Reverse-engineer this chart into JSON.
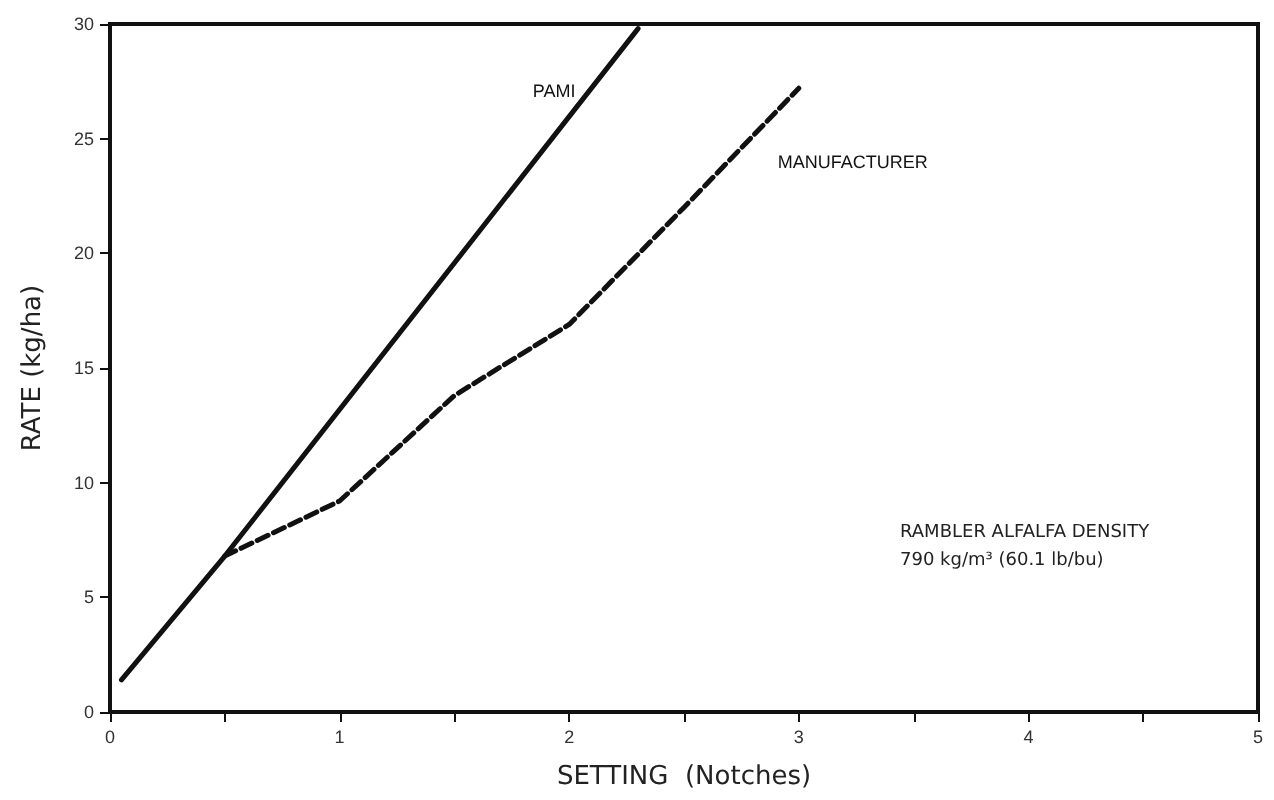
{
  "chart_data": {
    "type": "line",
    "xlabel": "SETTING  (Notches)",
    "ylabel": "RATE (kg/ha)",
    "xlim": [
      0,
      5
    ],
    "ylim": [
      0,
      30
    ],
    "xticks": [
      0,
      {
        "value": 0.5,
        "label": null
      },
      1,
      {
        "value": 1.5,
        "label": null
      },
      2,
      {
        "value": 2.5,
        "label": null
      },
      3,
      {
        "value": 3.5,
        "label": null
      },
      4,
      {
        "value": 4.5,
        "label": null
      },
      5
    ],
    "yticks": [
      0,
      5,
      10,
      15,
      20,
      25,
      30
    ],
    "grid": false,
    "legend": false,
    "marker": "none",
    "series": [
      {
        "name": "PAMI",
        "color": "#111111",
        "line_style": "solid",
        "x": [
          0.05,
          0.5,
          2.3
        ],
        "values": [
          1.4,
          6.8,
          29.8
        ]
      },
      {
        "name": "MANUFACTURER",
        "color": "#111111",
        "line_style": "dashed",
        "x": [
          0.5,
          0.75,
          1.0,
          1.5,
          2.0,
          2.5,
          3.0
        ],
        "values": [
          6.8,
          8.0,
          9.2,
          13.8,
          16.9,
          22.0,
          27.2
        ]
      }
    ],
    "annotations": [
      "RAMBLER ALFALFA DENSITY",
      "790 kg/m³ (60.1 lb/bu)"
    ]
  }
}
